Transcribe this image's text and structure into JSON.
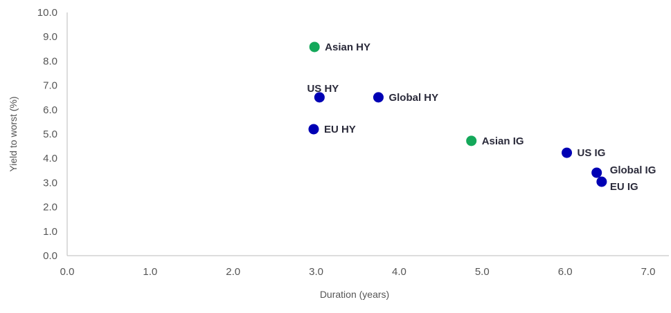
{
  "chart_data": {
    "type": "scatter",
    "xlabel": "Duration (years)",
    "ylabel": "Yield to worst (%)",
    "xlim": [
      0,
      7
    ],
    "ylim": [
      0,
      10
    ],
    "x_ticks": [
      "0.0",
      "1.0",
      "2.0",
      "3.0",
      "4.0",
      "5.0",
      "6.0",
      "7.0"
    ],
    "y_ticks": [
      "0.0",
      "1.0",
      "2.0",
      "3.0",
      "4.0",
      "5.0",
      "6.0",
      "7.0",
      "8.0",
      "9.0",
      "10.0"
    ],
    "grid": false,
    "colors": {
      "asian": "#14a85a",
      "other": "#0000b4"
    },
    "points": [
      {
        "label": "Asian HY",
        "x": 2.98,
        "y": 8.58,
        "group": "asian"
      },
      {
        "label": "US HY",
        "x": 3.04,
        "y": 6.51,
        "group": "other"
      },
      {
        "label": "Global HY",
        "x": 3.75,
        "y": 6.51,
        "group": "other"
      },
      {
        "label": "EU HY",
        "x": 2.97,
        "y": 5.2,
        "group": "other"
      },
      {
        "label": "Asian IG",
        "x": 4.87,
        "y": 4.72,
        "group": "asian"
      },
      {
        "label": "US IG",
        "x": 6.02,
        "y": 4.23,
        "group": "other"
      },
      {
        "label": "Global IG",
        "x": 6.38,
        "y": 3.41,
        "group": "other"
      },
      {
        "label": "EU IG",
        "x": 6.44,
        "y": 3.04,
        "group": "other"
      }
    ]
  }
}
